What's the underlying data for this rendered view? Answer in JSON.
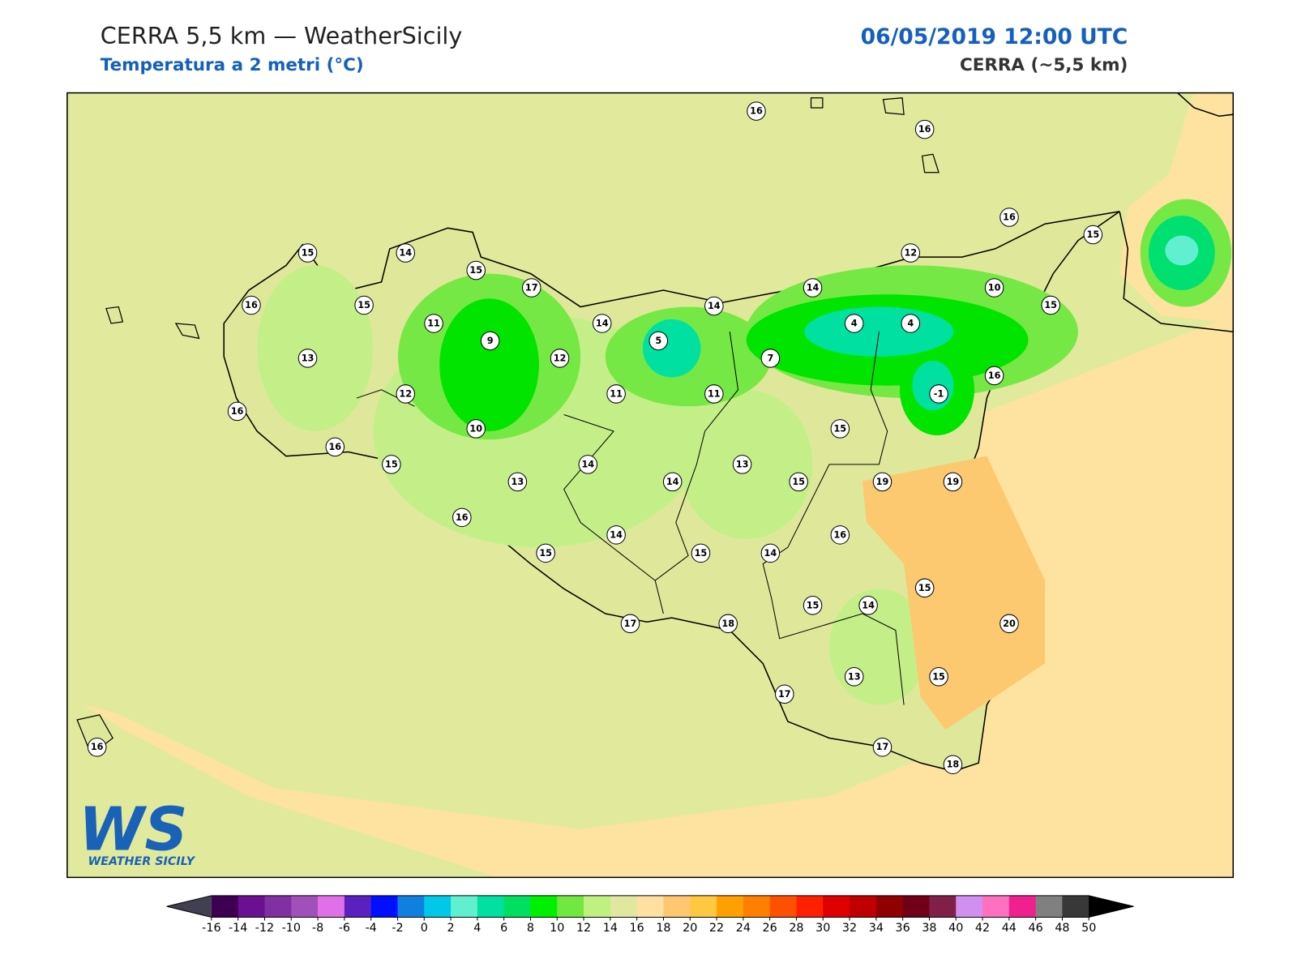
{
  "header": {
    "title": "CERRA 5,5 km — WeatherSicily",
    "subtitle": "Temperatura a 2 metri (°C)",
    "datetime": "06/05/2019 12:00 UTC",
    "model": "CERRA (~5,5 km)"
  },
  "stations": [
    16,
    16,
    15,
    14,
    15,
    17,
    16,
    15,
    14,
    14,
    14,
    12,
    16,
    15,
    10,
    15,
    11,
    9,
    5,
    4,
    4,
    13,
    12,
    7,
    16,
    12,
    11,
    11,
    -1,
    16,
    10,
    15,
    16,
    15,
    14,
    13,
    13,
    14,
    15,
    19,
    19,
    16,
    14,
    16,
    15,
    15,
    14,
    15,
    15,
    14,
    20,
    17,
    18,
    13,
    15,
    17,
    17,
    18,
    16
  ],
  "colorbar": {
    "ticks": [
      -16,
      -14,
      -12,
      -10,
      -8,
      -6,
      -4,
      -2,
      0,
      2,
      4,
      6,
      8,
      10,
      12,
      14,
      16,
      18,
      20,
      22,
      24,
      26,
      28,
      30,
      32,
      34,
      36,
      38,
      40,
      42,
      44,
      46,
      48,
      50
    ],
    "colors": [
      "#3d0050",
      "#6a1090",
      "#8030a0",
      "#a050b8",
      "#e070e8",
      "#5a20c0",
      "#0010ff",
      "#1080e0",
      "#00c8e8",
      "#60f0d0",
      "#00e0a0",
      "#00e060",
      "#00f000",
      "#70e840",
      "#c0f080",
      "#e0e8a0",
      "#ffe0a0",
      "#ffc870",
      "#ffc840",
      "#ffa000",
      "#ff8000",
      "#ff5000",
      "#ff2000",
      "#e00000",
      "#c00000",
      "#900000",
      "#700018",
      "#802048",
      "#d090f0",
      "#ff70c0",
      "#f02090",
      "#808080",
      "#383838"
    ],
    "under_color": "#404050",
    "over_color": "#000000"
  },
  "logo": {
    "initials": "WS",
    "name": "WEATHER SICILY"
  }
}
